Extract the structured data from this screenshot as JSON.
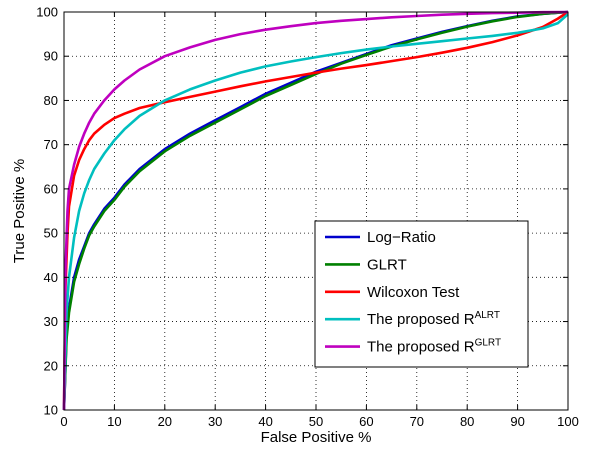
{
  "chart_data": {
    "type": "line",
    "xlabel": "False Positive %",
    "ylabel": "True Positive %",
    "xlim": [
      0,
      100
    ],
    "ylim": [
      10,
      100
    ],
    "xticks": [
      0,
      10,
      20,
      30,
      40,
      50,
      60,
      70,
      80,
      90,
      100
    ],
    "yticks": [
      10,
      20,
      30,
      40,
      50,
      60,
      70,
      80,
      90,
      100
    ],
    "grid": true,
    "legend_position": "lower-right",
    "series": [
      {
        "name": "Log−Ratio",
        "color": "#0000cc",
        "x": [
          0,
          0.5,
          1,
          2,
          3,
          4,
          5,
          6,
          8,
          10,
          12,
          15,
          20,
          25,
          30,
          35,
          40,
          45,
          50,
          55,
          60,
          65,
          70,
          75,
          80,
          85,
          90,
          95,
          100
        ],
        "y": [
          10,
          27,
          33,
          40,
          44,
          47,
          50,
          52,
          55.5,
          58,
          61,
          64.5,
          69,
          72.5,
          75.5,
          78.5,
          81.5,
          84,
          86.5,
          88.5,
          90.5,
          92.5,
          94,
          95.5,
          96.8,
          98,
          99,
          99.6,
          100
        ]
      },
      {
        "name": "GLRT",
        "color": "#008000",
        "x": [
          0,
          0.5,
          1,
          2,
          3,
          4,
          5,
          6,
          8,
          10,
          12,
          15,
          20,
          25,
          30,
          35,
          40,
          45,
          50,
          55,
          60,
          65,
          70,
          75,
          80,
          85,
          90,
          95,
          100
        ],
        "y": [
          10,
          26,
          32,
          39,
          43,
          46.5,
          49.5,
          51.5,
          55,
          57.5,
          60.5,
          64,
          68.5,
          72,
          75,
          78,
          81,
          83.5,
          86,
          88.3,
          90.3,
          92.2,
          93.8,
          95.3,
          96.7,
          97.9,
          98.9,
          99.6,
          100
        ]
      },
      {
        "name": "Wilcoxon Test",
        "color": "#ff0000",
        "x": [
          0,
          0.3,
          0.7,
          1,
          2,
          3,
          4,
          5,
          6,
          8,
          10,
          12,
          15,
          20,
          25,
          30,
          35,
          40,
          45,
          50,
          55,
          60,
          65,
          70,
          75,
          80,
          85,
          90,
          95,
          98,
          100
        ],
        "y": [
          10,
          38,
          50,
          56,
          63,
          66.5,
          69,
          71,
          72.5,
          74.5,
          76,
          77,
          78.3,
          79.6,
          80.8,
          82,
          83.2,
          84.3,
          85.3,
          86.3,
          87.2,
          88,
          88.9,
          89.8,
          90.8,
          91.9,
          93.2,
          94.7,
          96.6,
          98.5,
          100
        ]
      },
      {
        "name": "The proposed R^ALRT",
        "color": "#00bfbf",
        "x": [
          0,
          0.5,
          1,
          2,
          3,
          4,
          5,
          6,
          8,
          10,
          12,
          15,
          20,
          25,
          30,
          35,
          40,
          45,
          50,
          55,
          60,
          65,
          70,
          75,
          80,
          85,
          90,
          95,
          98,
          100
        ],
        "y": [
          10,
          32,
          40,
          49,
          55,
          59,
          62,
          64.5,
          68,
          71,
          73.5,
          76.5,
          80,
          82.5,
          84.5,
          86.3,
          87.7,
          88.8,
          89.8,
          90.7,
          91.5,
          92.2,
          92.8,
          93.4,
          94,
          94.6,
          95.3,
          96.3,
          97.5,
          99.5
        ]
      },
      {
        "name": "The proposed R^GLRT",
        "color": "#bf00bf",
        "x": [
          0,
          0.3,
          0.7,
          1,
          2,
          3,
          4,
          5,
          6,
          8,
          10,
          12,
          15,
          20,
          25,
          30,
          35,
          40,
          45,
          50,
          55,
          60,
          65,
          70,
          75,
          80,
          85,
          90,
          95,
          100
        ],
        "y": [
          10,
          42,
          55,
          60,
          65.5,
          69.5,
          72.5,
          75,
          77,
          80,
          82.5,
          84.5,
          87,
          90,
          92,
          93.7,
          95,
          96,
          96.8,
          97.5,
          98,
          98.4,
          98.8,
          99.1,
          99.4,
          99.6,
          99.75,
          99.85,
          99.95,
          100
        ]
      }
    ],
    "legend": {
      "items": [
        {
          "label": "Log−Ratio",
          "sup": ""
        },
        {
          "label": "GLRT",
          "sup": ""
        },
        {
          "label": "Wilcoxon Test",
          "sup": ""
        },
        {
          "label": "The proposed R",
          "sup": "ALRT"
        },
        {
          "label": "The proposed R",
          "sup": "GLRT"
        }
      ]
    }
  }
}
